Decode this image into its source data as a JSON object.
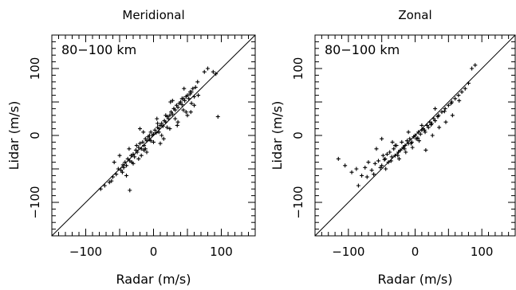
{
  "chart_data": [
    {
      "type": "scatter",
      "title": "Meridional",
      "annotation": "80−100 km",
      "xlabel": "Radar (m/s)",
      "ylabel": "Lidar (m/s)",
      "xlim": [
        -150,
        150
      ],
      "ylim": [
        -150,
        150
      ],
      "xticks": [
        -100,
        0,
        100
      ],
      "yticks": [
        -100,
        0,
        100
      ],
      "xtick_labels": [
        "−100",
        "0",
        "100"
      ],
      "ytick_labels": [
        "−100",
        "0",
        "100"
      ],
      "reference_line": "y = x",
      "marker": "+",
      "x": [
        -78,
        -72,
        -65,
        -60,
        -55,
        -52,
        -48,
        -45,
        -42,
        -40,
        -38,
        -35,
        -33,
        -30,
        -28,
        -26,
        -24,
        -22,
        -20,
        -18,
        -16,
        -14,
        -12,
        -10,
        -8,
        -6,
        -4,
        -2,
        0,
        2,
        4,
        6,
        8,
        10,
        12,
        14,
        16,
        18,
        20,
        22,
        24,
        26,
        28,
        30,
        32,
        34,
        36,
        38,
        40,
        42,
        44,
        46,
        48,
        50,
        52,
        54,
        56,
        58,
        60,
        62,
        -58,
        -50,
        -44,
        -36,
        -30,
        -25,
        -18,
        -12,
        -6,
        0,
        6,
        12,
        18,
        24,
        30,
        36,
        42,
        48,
        54,
        60,
        -35,
        -20,
        -10,
        5,
        15,
        25,
        35,
        45,
        55,
        65,
        75,
        80,
        88,
        92,
        95,
        -40,
        -15,
        10,
        28,
        50,
        -62,
        -46,
        -32,
        -22,
        -14,
        -4,
        8,
        20,
        32,
        44,
        56,
        66
      ],
      "y": [
        -80,
        -75,
        -70,
        -62,
        -58,
        -50,
        -52,
        -44,
        -40,
        -45,
        -35,
        -38,
        -30,
        -28,
        -32,
        -22,
        -25,
        -18,
        -12,
        -20,
        -10,
        -15,
        -5,
        -8,
        -2,
        -6,
        5,
        0,
        2,
        8,
        4,
        12,
        10,
        15,
        18,
        14,
        22,
        20,
        28,
        25,
        30,
        35,
        32,
        40,
        38,
        45,
        42,
        48,
        50,
        46,
        55,
        52,
        58,
        60,
        55,
        62,
        65,
        70,
        58,
        72,
        -40,
        -30,
        -48,
        -20,
        -42,
        -15,
        -30,
        -20,
        0,
        -10,
        18,
        0,
        30,
        10,
        40,
        20,
        55,
        35,
        65,
        45,
        -82,
        10,
        -25,
        25,
        -5,
        50,
        15,
        70,
        35,
        80,
        95,
        100,
        95,
        92,
        28,
        -60,
        5,
        -12,
        52,
        30,
        -68,
        -55,
        -40,
        -35,
        -22,
        -8,
        5,
        12,
        25,
        38,
        48,
        60
      ],
      "x_unit": "m/s",
      "y_unit": "m/s"
    },
    {
      "type": "scatter",
      "title": "Zonal",
      "annotation": "80−100 km",
      "xlabel": "Radar (m/s)",
      "ylabel": "Lidar (m/s)",
      "xlim": [
        -150,
        150
      ],
      "ylim": [
        -150,
        150
      ],
      "xticks": [
        -100,
        0,
        100
      ],
      "yticks": [
        -100,
        0,
        100
      ],
      "xtick_labels": [
        "−100",
        "0",
        "100"
      ],
      "ytick_labels": [
        "−100",
        "0",
        "100"
      ],
      "reference_line": "y = x",
      "marker": "+",
      "x": [
        -115,
        -105,
        -95,
        -88,
        -80,
        -75,
        -70,
        -65,
        -60,
        -55,
        -50,
        -48,
        -45,
        -42,
        -40,
        -38,
        -35,
        -32,
        -30,
        -28,
        -25,
        -22,
        -20,
        -18,
        -15,
        -12,
        -10,
        -8,
        -5,
        -2,
        0,
        2,
        5,
        8,
        10,
        12,
        15,
        18,
        20,
        22,
        25,
        28,
        30,
        35,
        40,
        45,
        50,
        55,
        60,
        65,
        70,
        75,
        80,
        -85,
        -72,
        -62,
        -52,
        -46,
        -36,
        -26,
        -16,
        -6,
        4,
        14,
        24,
        34,
        44,
        54,
        -58,
        -44,
        -34,
        -24,
        -14,
        -4,
        6,
        16,
        26,
        36,
        46,
        56,
        66,
        90,
        85,
        -50,
        -30,
        -10,
        10,
        30
      ],
      "y": [
        -35,
        -45,
        -55,
        -50,
        -60,
        -48,
        -40,
        -52,
        -42,
        -38,
        -45,
        -30,
        -35,
        -28,
        -40,
        -25,
        -32,
        -20,
        -30,
        -15,
        -25,
        -22,
        -10,
        -18,
        -15,
        -8,
        -12,
        -5,
        -10,
        -2,
        0,
        -5,
        5,
        2,
        8,
        10,
        5,
        15,
        12,
        20,
        18,
        25,
        22,
        30,
        35,
        40,
        45,
        50,
        55,
        60,
        65,
        70,
        78,
        -75,
        -62,
        -58,
        -48,
        -36,
        -38,
        -30,
        -20,
        -12,
        -4,
        8,
        16,
        28,
        36,
        48,
        -20,
        -50,
        -10,
        -35,
        -25,
        -18,
        -8,
        -22,
        0,
        12,
        20,
        30,
        52,
        105,
        100,
        -5,
        -15,
        5,
        15,
        40
      ],
      "x_unit": "m/s",
      "y_unit": "m/s"
    }
  ]
}
